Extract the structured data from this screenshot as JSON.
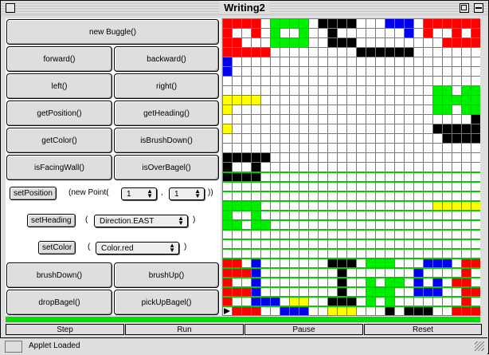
{
  "window": {
    "title": "Writing2"
  },
  "controls": {
    "new_buggle": "new Buggle()",
    "forward": "forward()",
    "backward": "backward()",
    "left": "left()",
    "right": "right()",
    "get_position": "getPosition()",
    "get_heading": "getHeading()",
    "get_color": "getColor()",
    "is_brush_down": "isBrushDown()",
    "is_facing_wall": "isFacingWall()",
    "is_over_bagel": "isOverBagel()",
    "set_position": "setPosition",
    "new_point_prefix": "(new Point(",
    "point_x": "1",
    "point_comma": ",",
    "point_y": "1",
    "new_point_suffix": "))",
    "set_heading": "setHeading",
    "heading_open": "(",
    "heading_value": "Direction.EAST",
    "heading_close": ")",
    "set_color": "setColor",
    "color_open": "(",
    "color_value": "Color.red",
    "color_close": ")",
    "brush_down": "brushDown()",
    "brush_up": "brushUp()",
    "drop_bagel": "dropBagel()",
    "pick_up_bagel": "pickUpBagel()"
  },
  "bottom_bar": {
    "step": "Step",
    "run": "Run",
    "pause": "Pause",
    "reset": "Reset"
  },
  "status": {
    "message": "Applet Loaded"
  },
  "colors": {
    "red": "#ff0000",
    "green": "#00ee00",
    "blue": "#0000ee",
    "yellow": "#ffff00",
    "black": "#000000",
    "white": "#ffffff",
    "grid_line": "#00cc00"
  },
  "grid": {
    "cols": 27,
    "rows": 31,
    "legend": {
      ".": "white",
      "R": "red",
      "G": "green",
      "B": "blue",
      "Y": "yellow",
      "K": "black"
    },
    "rows_data": [
      "RRRR.GGGG.KKKK...BBB.RRRRRR",
      "R..R.G..G..K.......B.R..R.R",
      "RR...GGGG..KKK.........RRRR",
      "RRRRR.........KKKKKK.......",
      "B..........................",
      "B..........................",
      "...........................",
      "......................GG.GG",
      "YYYY..................GGGGG",
      "Y.....................GG.GG",
      "..........................K",
      "Y.....................KKKKK",
      ".......................KKKK",
      "...........................",
      "KKKKK......................",
      "K..K.......................",
      "KKKK.......................",
      "...........................",
      "...........................",
      "GGGG..................YYYYY",
      "G..G.......................",
      "GG.GG......................",
      "...........................",
      "...........................",
      "...........................",
      "RR.B.......KKK.GGG...BBB.RR",
      "RRRB........K.......B....R.",
      "R..B........K..G.GG.B.B.RR.",
      "RRRB........K..GGG..BBB..RR",
      "R..BBB.YY..KKK.G.G.......R.",
      ".RRR..BBB..YYY...K.KKK..RRR"
    ]
  }
}
